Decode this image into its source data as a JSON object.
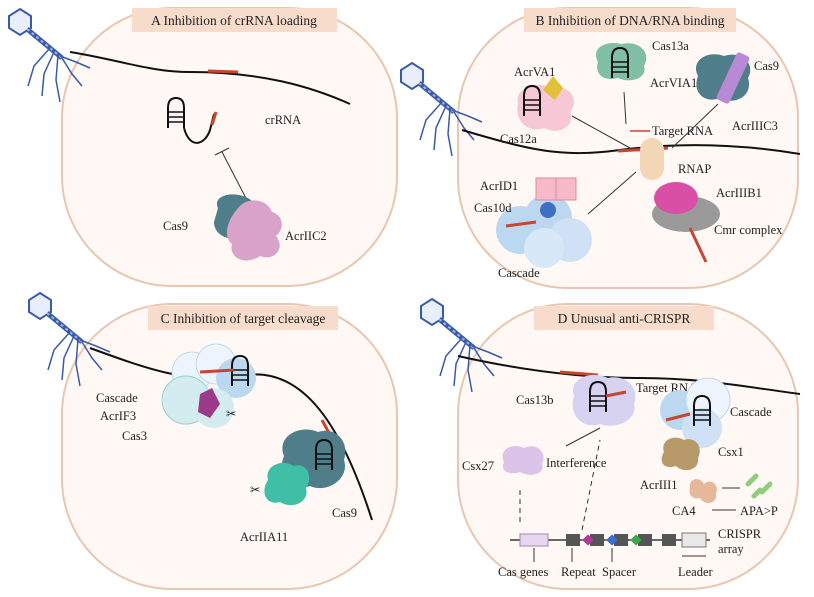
{
  "panels": {
    "a": {
      "title": "A Inhibition of crRNA loading",
      "crrna": "crRNA",
      "cas9": "Cas9",
      "acr": "AcrIIC2"
    },
    "b": {
      "title": "B Inhibition of DNA/RNA binding",
      "acrva1": "AcrVA1",
      "cas12a": "Cas12a",
      "cas13a": "Cas13a",
      "acrvia1": "AcrVIA1",
      "cas9": "Cas9",
      "acriiic3": "AcrIIIC3",
      "target_rna": "Target RNA",
      "rnap": "RNAP",
      "acrid1": "AcrID1",
      "cas10d": "Cas10d",
      "cascade": "Cascade",
      "acriiib1": "AcrIIIB1",
      "cmr": "Cmr complex"
    },
    "c": {
      "title": "C Inhibition of target cleavage",
      "cascade": "Cascade",
      "acrif3": "AcrIF3",
      "cas3": "Cas3",
      "acriia11": "AcrIIA11",
      "cas9": "Cas9"
    },
    "d": {
      "title": "D Unusual anti-CRISPR",
      "cas13b": "Cas13b",
      "target_rna": "Target RNA",
      "cascade": "Cascade",
      "csx1": "Csx1",
      "csx27": "Csx27",
      "interference": "Interference",
      "acriii1": "AcrIII1",
      "ca4": "CA4",
      "apa": "APA>P",
      "crispr": "CRISPR",
      "array": "array",
      "cas_genes": "Cas genes",
      "repeat": "Repeat",
      "spacer": "Spacer",
      "leader": "Leader"
    }
  },
  "colors": {
    "cell_fill": "#fff8f4",
    "banner": "#f8dccb",
    "phage": "#3a5aa8",
    "dna": "#111111",
    "crrna_red": "#c8462f",
    "cas9": "#4f7d89",
    "acr_pink": "#d9a3c9",
    "cas13": "#7fbfa3",
    "cascade_blue": "#bcd8f0",
    "acr_green": "#3fbfa5",
    "rnap": "#f3d6b5",
    "cmr_pink": "#d94fa6",
    "csx27": "#dcc3ea",
    "csx1": "#b89a6a"
  }
}
